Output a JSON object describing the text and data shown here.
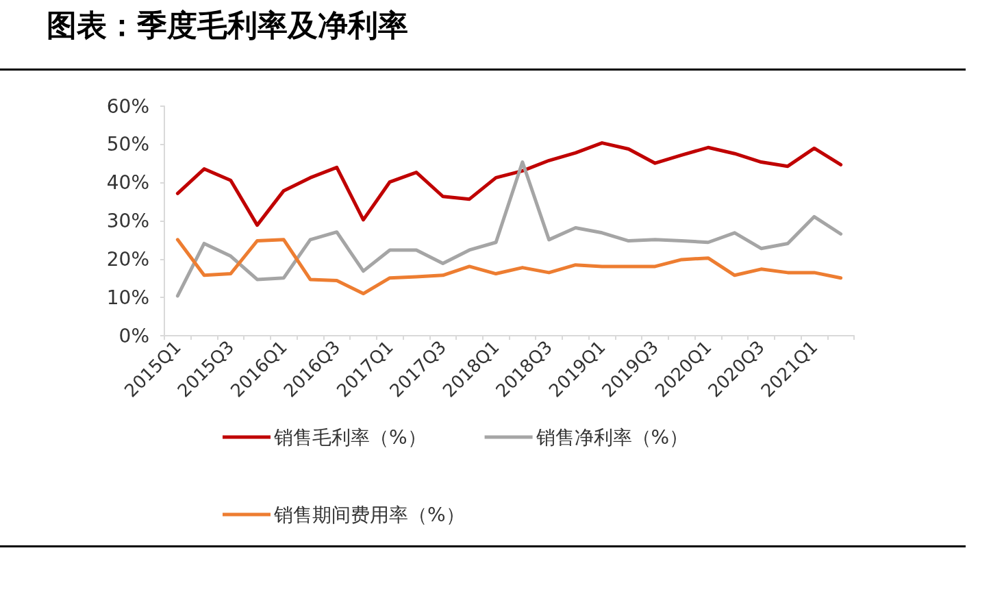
{
  "chart_data": {
    "type": "line",
    "title": "图表：季度毛利率及净利率",
    "categories": [
      "2015Q1",
      null,
      "2015Q3",
      null,
      "2016Q1",
      null,
      "2016Q3",
      null,
      "2017Q1",
      null,
      "2017Q3",
      null,
      "2018Q1",
      null,
      "2018Q3",
      null,
      "2019Q1",
      null,
      "2019Q3",
      null,
      "2020Q1",
      null,
      "2020Q3",
      null,
      "2021Q1",
      null
    ],
    "series": [
      {
        "name": "销售毛利率（%）",
        "color": "#c00000",
        "values": [
          37.2,
          43.6,
          40.6,
          28.9,
          37.9,
          41.3,
          44.0,
          30.3,
          40.2,
          42.7,
          36.4,
          35.7,
          41.3,
          43.1,
          45.8,
          47.8,
          50.4,
          48.8,
          45.1,
          47.2,
          49.2,
          47.6,
          45.4,
          44.3,
          49.0,
          44.7
        ]
      },
      {
        "name": "销售净利率（%）",
        "color": "#a5a5a5",
        "values": [
          10.4,
          24.1,
          20.8,
          14.7,
          15.1,
          25.1,
          27.1,
          16.9,
          22.4,
          22.4,
          18.9,
          22.4,
          24.4,
          45.4,
          25.1,
          28.2,
          26.9,
          24.8,
          25.1,
          24.8,
          24.4,
          26.9,
          22.8,
          24.1,
          31.1,
          26.6
        ]
      },
      {
        "name": "销售期间费用率（%）",
        "color": "#ed7d31",
        "values": [
          25.1,
          15.8,
          16.2,
          24.8,
          25.1,
          14.7,
          14.4,
          11.0,
          15.1,
          15.4,
          15.8,
          18.1,
          16.2,
          17.8,
          16.5,
          18.5,
          18.1,
          18.1,
          18.1,
          19.9,
          20.3,
          15.8,
          17.4,
          16.5,
          16.5,
          15.1
        ]
      }
    ],
    "ylim": [
      0,
      60
    ],
    "yticks": [
      {
        "value": 0,
        "label": "0%"
      },
      {
        "value": 10,
        "label": "10%"
      },
      {
        "value": 20,
        "label": "20%"
      },
      {
        "value": 30,
        "label": "30%"
      },
      {
        "value": 40,
        "label": "40%"
      },
      {
        "value": 50,
        "label": "50%"
      },
      {
        "value": 60,
        "label": "60%"
      }
    ],
    "legend": "bottom",
    "grid": false,
    "marker": "none",
    "line_style": "solid"
  }
}
